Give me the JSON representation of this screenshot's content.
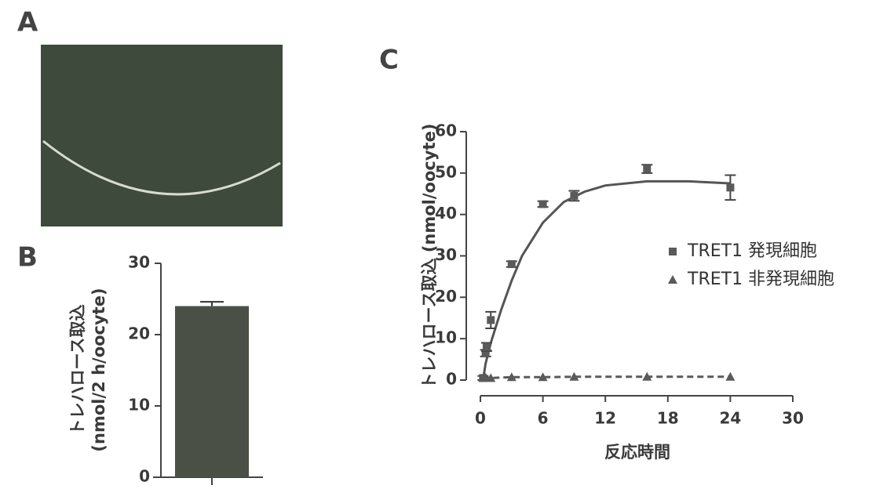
{
  "chart_data": [
    {
      "type": "image",
      "panel_label": "A"
    },
    {
      "type": "bar",
      "panel_label": "B",
      "ylabel": [
        "トレハロース取込",
        "(nmol/2 h/oocyte)"
      ],
      "categories": [
        null
      ],
      "values": [
        24
      ],
      "errors": [
        0.6
      ],
      "color": "#4a5046",
      "ylim": [
        0,
        30
      ],
      "yticks": [
        0,
        10,
        20,
        30
      ]
    },
    {
      "type": "scatter",
      "panel_label": "C",
      "xlabel": "反応時間",
      "ylabel": "トレハロース取込 (nmol/oocyte)",
      "xlim": [
        0,
        30
      ],
      "xticks": [
        0,
        6,
        12,
        18,
        24,
        30
      ],
      "ylim": [
        0,
        60
      ],
      "yticks": [
        0,
        10,
        20,
        30,
        40,
        50,
        60
      ],
      "legend": "right",
      "series": [
        {
          "name": "TRET1 発現細胞",
          "color": "#5a5a5a",
          "marker": "square",
          "x": [
            0.25,
            0.5,
            0.6,
            1,
            3,
            6,
            9,
            16,
            24
          ],
          "values": [
            0.5,
            6.5,
            8,
            14.5,
            28,
            42.5,
            44.5,
            51,
            46.5
          ],
          "errors": [
            0.5,
            0.8,
            1,
            2,
            0.7,
            0.7,
            1.2,
            1,
            3
          ]
        },
        {
          "name": "TRET1 非発現細胞",
          "color": "#5a5a5a",
          "marker": "triangle",
          "line_style": "dashed",
          "x": [
            0.25,
            0.5,
            1,
            3,
            6,
            9,
            16,
            24
          ],
          "values": [
            0.5,
            0.6,
            0.5,
            0.7,
            0.7,
            0.8,
            0.8,
            0.8
          ]
        }
      ],
      "fit_line": {
        "color": "#555555",
        "x": [
          0.25,
          0.5,
          1,
          2,
          3,
          4,
          6,
          8,
          10,
          12,
          16,
          20,
          24
        ],
        "values": [
          0,
          4,
          9,
          17,
          24,
          30,
          38,
          43,
          45.5,
          47,
          48,
          48,
          47.5
        ]
      }
    }
  ]
}
